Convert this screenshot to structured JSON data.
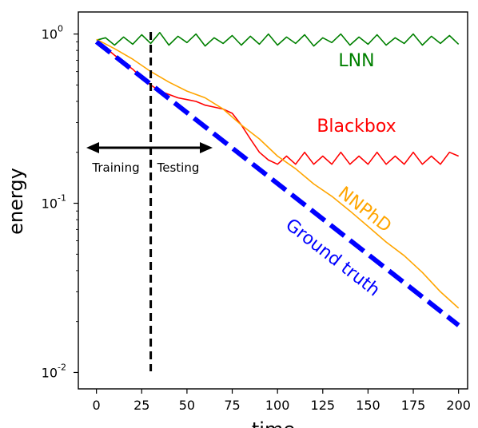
{
  "chart_data": {
    "type": "line",
    "xlabel": "time",
    "ylabel": "energy",
    "xlim": [
      -10,
      205
    ],
    "ylim": [
      0.008,
      1.35
    ],
    "yscale": "log",
    "x_ticks": [
      0,
      25,
      50,
      75,
      100,
      125,
      150,
      175,
      200
    ],
    "x_tick_labels": [
      "0",
      "25",
      "50",
      "75",
      "100",
      "125",
      "150",
      "175",
      "200"
    ],
    "y_ticks": [
      0.01,
      0.1,
      1
    ],
    "y_tick_labels": [
      "10",
      "10",
      "10"
    ],
    "y_tick_exponents": [
      "-2",
      "-1",
      "0"
    ],
    "grid": false,
    "series": [
      {
        "name": "LNN",
        "color": "#008000",
        "x": [
          0,
          5,
          10,
          15,
          20,
          25,
          30,
          35,
          40,
          45,
          50,
          55,
          60,
          65,
          70,
          75,
          80,
          85,
          90,
          95,
          100,
          105,
          110,
          115,
          120,
          125,
          130,
          135,
          140,
          145,
          150,
          155,
          160,
          165,
          170,
          175,
          180,
          185,
          190,
          195,
          200
        ],
        "y": [
          0.92,
          0.95,
          0.86,
          0.96,
          0.87,
          0.99,
          0.88,
          1.02,
          0.86,
          0.97,
          0.89,
          1.0,
          0.85,
          0.95,
          0.88,
          0.98,
          0.86,
          0.97,
          0.87,
          1.0,
          0.86,
          0.96,
          0.88,
          0.99,
          0.85,
          0.95,
          0.89,
          1.0,
          0.86,
          0.96,
          0.87,
          0.99,
          0.86,
          0.95,
          0.88,
          1.0,
          0.86,
          0.97,
          0.88,
          0.98,
          0.87
        ]
      },
      {
        "name": "Blackbox",
        "color": "#ff0000",
        "x": [
          0,
          5,
          10,
          15,
          20,
          25,
          30,
          35,
          40,
          45,
          50,
          55,
          60,
          65,
          70,
          75,
          80,
          85,
          90,
          95,
          100,
          105,
          110,
          115,
          120,
          125,
          130,
          135,
          140,
          145,
          150,
          155,
          160,
          165,
          170,
          175,
          180,
          185,
          190,
          195,
          200
        ],
        "y": [
          0.9,
          0.83,
          0.75,
          0.68,
          0.62,
          0.55,
          0.5,
          0.46,
          0.44,
          0.42,
          0.41,
          0.4,
          0.38,
          0.37,
          0.36,
          0.34,
          0.29,
          0.24,
          0.2,
          0.18,
          0.17,
          0.19,
          0.17,
          0.2,
          0.17,
          0.19,
          0.17,
          0.2,
          0.17,
          0.19,
          0.17,
          0.2,
          0.17,
          0.19,
          0.17,
          0.2,
          0.17,
          0.19,
          0.17,
          0.2,
          0.19
        ]
      },
      {
        "name": "NNPhD",
        "color": "#ffa500",
        "x": [
          0,
          10,
          20,
          30,
          40,
          50,
          60,
          70,
          80,
          90,
          100,
          110,
          120,
          130,
          140,
          150,
          160,
          170,
          180,
          190,
          200
        ],
        "y": [
          0.93,
          0.82,
          0.71,
          0.6,
          0.52,
          0.46,
          0.42,
          0.36,
          0.29,
          0.24,
          0.19,
          0.16,
          0.13,
          0.11,
          0.09,
          0.073,
          0.059,
          0.049,
          0.039,
          0.03,
          0.024
        ]
      },
      {
        "name": "Ground truth",
        "color": "#0000ff",
        "x": [
          0,
          200
        ],
        "y": [
          0.9,
          0.019
        ]
      }
    ],
    "annotations": [
      {
        "text": "LNN",
        "color": "#008000"
      },
      {
        "text": "Blackbox",
        "color": "#ff0000"
      },
      {
        "text": "NNPhD",
        "color": "#ffa500"
      },
      {
        "text": "Ground truth",
        "color": "#0000ff"
      },
      {
        "text": "Training",
        "color": "#000000"
      },
      {
        "text": "Testing",
        "color": "#000000"
      }
    ],
    "split_x": 30
  }
}
